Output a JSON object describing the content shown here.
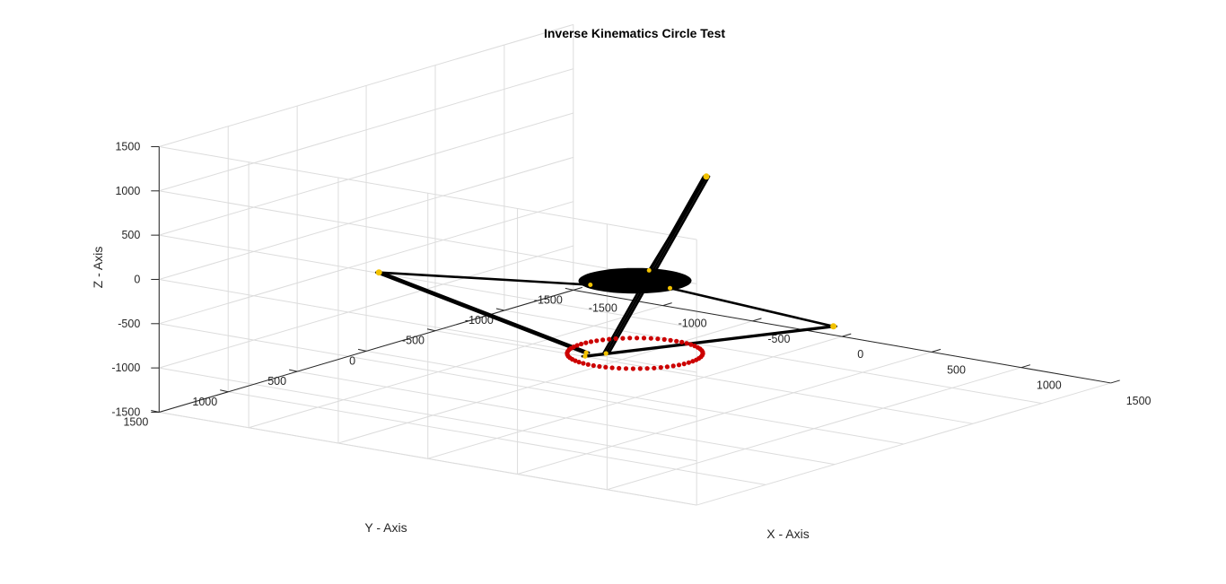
{
  "chart_data": {
    "type": "scatter3d",
    "title": "Inverse Kinematics Circle Test",
    "xlabel": "X - Axis",
    "ylabel": "Y - Axis",
    "zlabel": "Z - Axis",
    "xlim": [
      -1500,
      1500
    ],
    "ylim": [
      -1500,
      1500
    ],
    "zlim": [
      -1500,
      1500
    ],
    "xticks": [
      "-1500",
      "-1000",
      "-500",
      "0",
      "500",
      "1000",
      "1500"
    ],
    "yticks": [
      "-1500",
      "-1000",
      "-500",
      "0",
      "500",
      "1000",
      "1500"
    ],
    "zticks": [
      "-1500",
      "-1000",
      "-500",
      "0",
      "500",
      "1000",
      "1500"
    ],
    "grid": true,
    "circle_path": {
      "center": [
        0,
        0,
        -1000
      ],
      "radius": 300,
      "n_points": 60,
      "color": "#cc0000"
    },
    "platform": {
      "center": [
        0,
        0,
        -180
      ],
      "radius": 250,
      "color": "#000000"
    },
    "arm_bases": [
      [
        -620,
        1050,
        180
      ],
      [
        1200,
        120,
        -220
      ],
      [
        -380,
        -1010,
        400
      ]
    ],
    "arm_tips_on_path": [
      [
        -180,
        120,
        -1000
      ],
      [
        -140,
        180,
        -1000
      ],
      [
        -100,
        80,
        -1000
      ]
    ],
    "joint_color": "#f2c200",
    "link_color": "#000000"
  }
}
